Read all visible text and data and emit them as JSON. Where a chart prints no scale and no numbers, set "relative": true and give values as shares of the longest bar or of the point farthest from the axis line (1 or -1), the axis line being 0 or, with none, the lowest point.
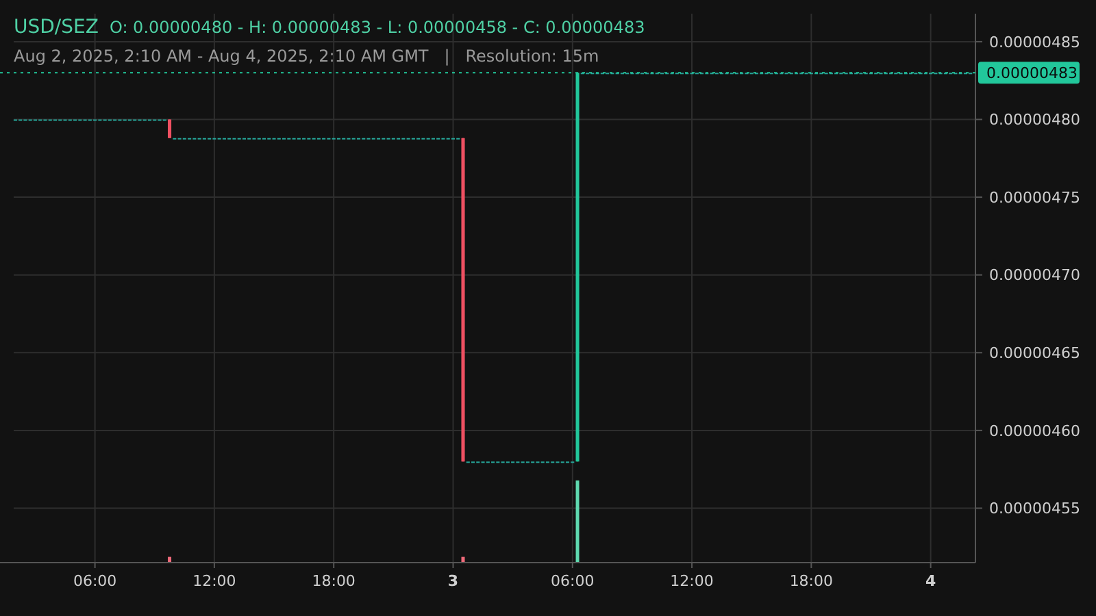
{
  "chart_data": [
    {
      "type": "candlestick",
      "title": "USD/SEZ",
      "subtitle": "Aug 2, 2025, 2:10 AM - Aug 4, 2025, 2:10 AM GMT   |   Resolution: 15m",
      "annotations": [
        "O: 0.00000480 - H: 0.00000483 - L: 0.00000458 - C: 0.00000483"
      ],
      "grid": true,
      "xlim": [
        "2025-08-02T01:55",
        "2025-08-04T02:15"
      ],
      "xticks": [
        {
          "value": "2025-08-02T06:00",
          "label": "06:00"
        },
        {
          "value": "2025-08-02T12:00",
          "label": "12:00"
        },
        {
          "value": "2025-08-02T18:00",
          "label": "18:00"
        },
        {
          "value": "2025-08-03T00:00",
          "label": "3"
        },
        {
          "value": "2025-08-03T06:00",
          "label": "06:00"
        },
        {
          "value": "2025-08-03T12:00",
          "label": "12:00"
        },
        {
          "value": "2025-08-03T18:00",
          "label": "18:00"
        },
        {
          "value": "2025-08-04T00:00",
          "label": "4"
        }
      ],
      "ylim": [
        4.515e-06,
        4.868e-06
      ],
      "yticks": [
        {
          "value": 4.55e-06,
          "label": "0.00000455"
        },
        {
          "value": 4.6e-06,
          "label": "0.00000460"
        },
        {
          "value": 4.65e-06,
          "label": "0.00000465"
        },
        {
          "value": 4.7e-06,
          "label": "0.00000470"
        },
        {
          "value": 4.75e-06,
          "label": "0.00000475"
        },
        {
          "value": 4.8e-06,
          "label": "0.00000480"
        },
        {
          "value": 4.85e-06,
          "label": "0.00000485"
        }
      ],
      "ref_lines": [
        {
          "axis": "y",
          "value": 4.83e-06,
          "label": "0.00000483",
          "color": "#22c79b",
          "line_style": "dotted"
        }
      ],
      "x": [
        "2025-08-02T02:00",
        "2025-08-02T02:15",
        "2025-08-02T02:30",
        "2025-08-02T02:45",
        "2025-08-02T03:00",
        "2025-08-02T03:15",
        "2025-08-02T03:30",
        "2025-08-02T03:45",
        "2025-08-02T04:00",
        "2025-08-02T04:15",
        "2025-08-02T04:30",
        "2025-08-02T04:45",
        "2025-08-02T05:00",
        "2025-08-02T05:15",
        "2025-08-02T05:30",
        "2025-08-02T05:45",
        "2025-08-02T06:00",
        "2025-08-02T06:15",
        "2025-08-02T06:30",
        "2025-08-02T06:45",
        "2025-08-02T07:00",
        "2025-08-02T07:15",
        "2025-08-02T07:30",
        "2025-08-02T07:45",
        "2025-08-02T08:00",
        "2025-08-02T08:15",
        "2025-08-02T08:30",
        "2025-08-02T08:45",
        "2025-08-02T09:00",
        "2025-08-02T09:15",
        "2025-08-02T09:30",
        "2025-08-02T09:45",
        "2025-08-02T10:00",
        "2025-08-02T10:15",
        "2025-08-02T10:30",
        "2025-08-02T10:45",
        "2025-08-02T11:00",
        "2025-08-02T11:15",
        "2025-08-02T11:30",
        "2025-08-02T11:45",
        "2025-08-02T12:00",
        "2025-08-02T12:15",
        "2025-08-02T12:30",
        "2025-08-02T12:45",
        "2025-08-02T13:00",
        "2025-08-02T13:15",
        "2025-08-02T13:30",
        "2025-08-02T13:45",
        "2025-08-02T14:00",
        "2025-08-02T14:15",
        "2025-08-02T14:30",
        "2025-08-02T14:45",
        "2025-08-02T15:00",
        "2025-08-02T15:15",
        "2025-08-02T15:30",
        "2025-08-02T15:45",
        "2025-08-02T16:00",
        "2025-08-02T16:15",
        "2025-08-02T16:30",
        "2025-08-02T16:45",
        "2025-08-02T17:00",
        "2025-08-02T17:15",
        "2025-08-02T17:30",
        "2025-08-02T17:45",
        "2025-08-02T18:00",
        "2025-08-02T18:15",
        "2025-08-02T18:30",
        "2025-08-02T18:45",
        "2025-08-02T19:00",
        "2025-08-02T19:15",
        "2025-08-02T19:30",
        "2025-08-02T19:45",
        "2025-08-02T20:00",
        "2025-08-02T20:15",
        "2025-08-02T20:30",
        "2025-08-02T20:45",
        "2025-08-02T21:00",
        "2025-08-02T21:15",
        "2025-08-02T21:30",
        "2025-08-02T21:45",
        "2025-08-02T22:00",
        "2025-08-02T22:15",
        "2025-08-02T22:30",
        "2025-08-02T22:45",
        "2025-08-02T23:00",
        "2025-08-02T23:15",
        "2025-08-02T23:30",
        "2025-08-02T23:45",
        "2025-08-03T00:00",
        "2025-08-03T00:15",
        "2025-08-03T00:30",
        "2025-08-03T00:45",
        "2025-08-03T01:00",
        "2025-08-03T01:15",
        "2025-08-03T01:30",
        "2025-08-03T01:45",
        "2025-08-03T02:00",
        "2025-08-03T02:15",
        "2025-08-03T02:30",
        "2025-08-03T02:45",
        "2025-08-03T03:00",
        "2025-08-03T03:15",
        "2025-08-03T03:30",
        "2025-08-03T03:45",
        "2025-08-03T04:00",
        "2025-08-03T04:15",
        "2025-08-03T04:30",
        "2025-08-03T04:45",
        "2025-08-03T05:00",
        "2025-08-03T05:15",
        "2025-08-03T05:30",
        "2025-08-03T05:45",
        "2025-08-03T06:00",
        "2025-08-03T06:15",
        "2025-08-03T06:30",
        "2025-08-03T06:45",
        "2025-08-03T07:00",
        "2025-08-03T07:15",
        "2025-08-03T07:30",
        "2025-08-03T07:45",
        "2025-08-03T08:00",
        "2025-08-03T08:15",
        "2025-08-03T08:30",
        "2025-08-03T08:45",
        "2025-08-03T09:00",
        "2025-08-03T09:15",
        "2025-08-03T09:30",
        "2025-08-03T09:45",
        "2025-08-03T10:00",
        "2025-08-03T10:15",
        "2025-08-03T10:30",
        "2025-08-03T10:45",
        "2025-08-03T11:00",
        "2025-08-03T11:15",
        "2025-08-03T11:30",
        "2025-08-03T11:45",
        "2025-08-03T12:00",
        "2025-08-03T12:15",
        "2025-08-03T12:30",
        "2025-08-03T12:45",
        "2025-08-03T13:00",
        "2025-08-03T13:15",
        "2025-08-03T13:30",
        "2025-08-03T13:45",
        "2025-08-03T14:00",
        "2025-08-03T14:15",
        "2025-08-03T14:30",
        "2025-08-03T14:45",
        "2025-08-03T15:00",
        "2025-08-03T15:15",
        "2025-08-03T15:30",
        "2025-08-03T15:45",
        "2025-08-03T16:00",
        "2025-08-03T16:15",
        "2025-08-03T16:30",
        "2025-08-03T16:45",
        "2025-08-03T17:00",
        "2025-08-03T17:15",
        "2025-08-03T17:30",
        "2025-08-03T17:45",
        "2025-08-03T18:00",
        "2025-08-03T18:15",
        "2025-08-03T18:30",
        "2025-08-03T18:45",
        "2025-08-03T19:00",
        "2025-08-03T19:15",
        "2025-08-03T19:30",
        "2025-08-03T19:45",
        "2025-08-03T20:00",
        "2025-08-03T20:15",
        "2025-08-03T20:30",
        "2025-08-03T20:45",
        "2025-08-03T21:00",
        "2025-08-03T21:15",
        "2025-08-03T21:30",
        "2025-08-03T21:45",
        "2025-08-03T22:00",
        "2025-08-03T22:15",
        "2025-08-03T22:30",
        "2025-08-03T22:45",
        "2025-08-03T23:00",
        "2025-08-03T23:15",
        "2025-08-03T23:30",
        "2025-08-03T23:45",
        "2025-08-04T00:00",
        "2025-08-04T00:15",
        "2025-08-04T00:30",
        "2025-08-04T00:45",
        "2025-08-04T01:00",
        "2025-08-04T01:15",
        "2025-08-04T01:30",
        "2025-08-04T01:45",
        "2025-08-04T02:00"
      ],
      "ohlc": [
        [
          4.8e-06,
          4.8e-06,
          4.8e-06,
          4.8e-06
        ],
        [
          4.8e-06,
          4.8e-06,
          4.8e-06,
          4.8e-06
        ],
        [
          4.8e-06,
          4.8e-06,
          4.8e-06,
          4.8e-06
        ],
        [
          4.8e-06,
          4.8e-06,
          4.8e-06,
          4.8e-06
        ],
        [
          4.8e-06,
          4.8e-06,
          4.8e-06,
          4.8e-06
        ],
        [
          4.8e-06,
          4.8e-06,
          4.8e-06,
          4.8e-06
        ],
        [
          4.8e-06,
          4.8e-06,
          4.8e-06,
          4.8e-06
        ],
        [
          4.8e-06,
          4.8e-06,
          4.8e-06,
          4.8e-06
        ],
        [
          4.8e-06,
          4.8e-06,
          4.8e-06,
          4.8e-06
        ],
        [
          4.8e-06,
          4.8e-06,
          4.8e-06,
          4.8e-06
        ],
        [
          4.8e-06,
          4.8e-06,
          4.8e-06,
          4.8e-06
        ],
        [
          4.8e-06,
          4.8e-06,
          4.8e-06,
          4.8e-06
        ],
        [
          4.8e-06,
          4.8e-06,
          4.8e-06,
          4.8e-06
        ],
        [
          4.8e-06,
          4.8e-06,
          4.8e-06,
          4.8e-06
        ],
        [
          4.8e-06,
          4.8e-06,
          4.8e-06,
          4.8e-06
        ],
        [
          4.8e-06,
          4.8e-06,
          4.8e-06,
          4.8e-06
        ],
        [
          4.8e-06,
          4.8e-06,
          4.8e-06,
          4.8e-06
        ],
        [
          4.8e-06,
          4.8e-06,
          4.8e-06,
          4.8e-06
        ],
        [
          4.8e-06,
          4.8e-06,
          4.8e-06,
          4.8e-06
        ],
        [
          4.8e-06,
          4.8e-06,
          4.8e-06,
          4.8e-06
        ],
        [
          4.8e-06,
          4.8e-06,
          4.8e-06,
          4.8e-06
        ],
        [
          4.8e-06,
          4.8e-06,
          4.8e-06,
          4.8e-06
        ],
        [
          4.8e-06,
          4.8e-06,
          4.8e-06,
          4.8e-06
        ],
        [
          4.8e-06,
          4.8e-06,
          4.8e-06,
          4.8e-06
        ],
        [
          4.8e-06,
          4.8e-06,
          4.8e-06,
          4.8e-06
        ],
        [
          4.8e-06,
          4.8e-06,
          4.8e-06,
          4.8e-06
        ],
        [
          4.8e-06,
          4.8e-06,
          4.8e-06,
          4.8e-06
        ],
        [
          4.8e-06,
          4.8e-06,
          4.8e-06,
          4.8e-06
        ],
        [
          4.8e-06,
          4.8e-06,
          4.8e-06,
          4.8e-06
        ],
        [
          4.8e-06,
          4.8e-06,
          4.8e-06,
          4.8e-06
        ],
        [
          4.8e-06,
          4.8e-06,
          4.8e-06,
          4.8e-06
        ],
        [
          4.8e-06,
          4.8e-06,
          4.788e-06,
          4.788e-06
        ],
        [
          4.788e-06,
          4.788e-06,
          4.788e-06,
          4.788e-06
        ],
        [
          4.788e-06,
          4.788e-06,
          4.788e-06,
          4.788e-06
        ],
        [
          4.788e-06,
          4.788e-06,
          4.788e-06,
          4.788e-06
        ],
        [
          4.788e-06,
          4.788e-06,
          4.788e-06,
          4.788e-06
        ],
        [
          4.788e-06,
          4.788e-06,
          4.788e-06,
          4.788e-06
        ],
        [
          4.788e-06,
          4.788e-06,
          4.788e-06,
          4.788e-06
        ],
        [
          4.788e-06,
          4.788e-06,
          4.788e-06,
          4.788e-06
        ],
        [
          4.788e-06,
          4.788e-06,
          4.788e-06,
          4.788e-06
        ],
        [
          4.788e-06,
          4.788e-06,
          4.788e-06,
          4.788e-06
        ],
        [
          4.788e-06,
          4.788e-06,
          4.788e-06,
          4.788e-06
        ],
        [
          4.788e-06,
          4.788e-06,
          4.788e-06,
          4.788e-06
        ],
        [
          4.788e-06,
          4.788e-06,
          4.788e-06,
          4.788e-06
        ],
        [
          4.788e-06,
          4.788e-06,
          4.788e-06,
          4.788e-06
        ],
        [
          4.788e-06,
          4.788e-06,
          4.788e-06,
          4.788e-06
        ],
        [
          4.788e-06,
          4.788e-06,
          4.788e-06,
          4.788e-06
        ],
        [
          4.788e-06,
          4.788e-06,
          4.788e-06,
          4.788e-06
        ],
        [
          4.788e-06,
          4.788e-06,
          4.788e-06,
          4.788e-06
        ],
        [
          4.788e-06,
          4.788e-06,
          4.788e-06,
          4.788e-06
        ],
        [
          4.788e-06,
          4.788e-06,
          4.788e-06,
          4.788e-06
        ],
        [
          4.788e-06,
          4.788e-06,
          4.788e-06,
          4.788e-06
        ],
        [
          4.788e-06,
          4.788e-06,
          4.788e-06,
          4.788e-06
        ],
        [
          4.788e-06,
          4.788e-06,
          4.788e-06,
          4.788e-06
        ],
        [
          4.788e-06,
          4.788e-06,
          4.788e-06,
          4.788e-06
        ],
        [
          4.788e-06,
          4.788e-06,
          4.788e-06,
          4.788e-06
        ],
        [
          4.788e-06,
          4.788e-06,
          4.788e-06,
          4.788e-06
        ],
        [
          4.788e-06,
          4.788e-06,
          4.788e-06,
          4.788e-06
        ],
        [
          4.788e-06,
          4.788e-06,
          4.788e-06,
          4.788e-06
        ],
        [
          4.788e-06,
          4.788e-06,
          4.788e-06,
          4.788e-06
        ],
        [
          4.788e-06,
          4.788e-06,
          4.788e-06,
          4.788e-06
        ],
        [
          4.788e-06,
          4.788e-06,
          4.788e-06,
          4.788e-06
        ],
        [
          4.788e-06,
          4.788e-06,
          4.788e-06,
          4.788e-06
        ],
        [
          4.788e-06,
          4.788e-06,
          4.788e-06,
          4.788e-06
        ],
        [
          4.788e-06,
          4.788e-06,
          4.788e-06,
          4.788e-06
        ],
        [
          4.788e-06,
          4.788e-06,
          4.788e-06,
          4.788e-06
        ],
        [
          4.788e-06,
          4.788e-06,
          4.788e-06,
          4.788e-06
        ],
        [
          4.788e-06,
          4.788e-06,
          4.788e-06,
          4.788e-06
        ],
        [
          4.788e-06,
          4.788e-06,
          4.788e-06,
          4.788e-06
        ],
        [
          4.788e-06,
          4.788e-06,
          4.788e-06,
          4.788e-06
        ],
        [
          4.788e-06,
          4.788e-06,
          4.788e-06,
          4.788e-06
        ],
        [
          4.788e-06,
          4.788e-06,
          4.788e-06,
          4.788e-06
        ],
        [
          4.788e-06,
          4.788e-06,
          4.788e-06,
          4.788e-06
        ],
        [
          4.788e-06,
          4.788e-06,
          4.788e-06,
          4.788e-06
        ],
        [
          4.788e-06,
          4.788e-06,
          4.788e-06,
          4.788e-06
        ],
        [
          4.788e-06,
          4.788e-06,
          4.788e-06,
          4.788e-06
        ],
        [
          4.788e-06,
          4.788e-06,
          4.788e-06,
          4.788e-06
        ],
        [
          4.788e-06,
          4.788e-06,
          4.788e-06,
          4.788e-06
        ],
        [
          4.788e-06,
          4.788e-06,
          4.788e-06,
          4.788e-06
        ],
        [
          4.788e-06,
          4.788e-06,
          4.788e-06,
          4.788e-06
        ],
        [
          4.788e-06,
          4.788e-06,
          4.788e-06,
          4.788e-06
        ],
        [
          4.788e-06,
          4.788e-06,
          4.788e-06,
          4.788e-06
        ],
        [
          4.788e-06,
          4.788e-06,
          4.788e-06,
          4.788e-06
        ],
        [
          4.788e-06,
          4.788e-06,
          4.788e-06,
          4.788e-06
        ],
        [
          4.788e-06,
          4.788e-06,
          4.788e-06,
          4.788e-06
        ],
        [
          4.788e-06,
          4.788e-06,
          4.788e-06,
          4.788e-06
        ],
        [
          4.788e-06,
          4.788e-06,
          4.788e-06,
          4.788e-06
        ],
        [
          4.788e-06,
          4.788e-06,
          4.788e-06,
          4.788e-06
        ],
        [
          4.788e-06,
          4.788e-06,
          4.788e-06,
          4.788e-06
        ],
        [
          4.788e-06,
          4.788e-06,
          4.788e-06,
          4.788e-06
        ],
        [
          4.788e-06,
          4.788e-06,
          4.58e-06,
          4.58e-06
        ],
        [
          4.58e-06,
          4.58e-06,
          4.58e-06,
          4.58e-06
        ],
        [
          4.58e-06,
          4.58e-06,
          4.58e-06,
          4.58e-06
        ],
        [
          4.58e-06,
          4.58e-06,
          4.58e-06,
          4.58e-06
        ],
        [
          4.58e-06,
          4.58e-06,
          4.58e-06,
          4.58e-06
        ],
        [
          4.58e-06,
          4.58e-06,
          4.58e-06,
          4.58e-06
        ],
        [
          4.58e-06,
          4.58e-06,
          4.58e-06,
          4.58e-06
        ],
        [
          4.58e-06,
          4.58e-06,
          4.58e-06,
          4.58e-06
        ],
        [
          4.58e-06,
          4.58e-06,
          4.58e-06,
          4.58e-06
        ],
        [
          4.58e-06,
          4.58e-06,
          4.58e-06,
          4.58e-06
        ],
        [
          4.58e-06,
          4.58e-06,
          4.58e-06,
          4.58e-06
        ],
        [
          4.58e-06,
          4.58e-06,
          4.58e-06,
          4.58e-06
        ],
        [
          4.58e-06,
          4.58e-06,
          4.58e-06,
          4.58e-06
        ],
        [
          4.58e-06,
          4.58e-06,
          4.58e-06,
          4.58e-06
        ],
        [
          4.58e-06,
          4.58e-06,
          4.58e-06,
          4.58e-06
        ],
        [
          4.58e-06,
          4.58e-06,
          4.58e-06,
          4.58e-06
        ],
        [
          4.58e-06,
          4.58e-06,
          4.58e-06,
          4.58e-06
        ],
        [
          4.58e-06,
          4.58e-06,
          4.58e-06,
          4.58e-06
        ],
        [
          4.58e-06,
          4.58e-06,
          4.58e-06,
          4.58e-06
        ],
        [
          4.58e-06,
          4.58e-06,
          4.58e-06,
          4.58e-06
        ],
        [
          4.58e-06,
          4.58e-06,
          4.58e-06,
          4.58e-06
        ],
        [
          4.58e-06,
          4.58e-06,
          4.58e-06,
          4.58e-06
        ],
        [
          4.58e-06,
          4.58e-06,
          4.58e-06,
          4.58e-06
        ],
        [
          4.58e-06,
          4.83e-06,
          4.58e-06,
          4.83e-06
        ],
        [
          4.83e-06,
          4.83e-06,
          4.83e-06,
          4.83e-06
        ],
        [
          4.83e-06,
          4.83e-06,
          4.83e-06,
          4.83e-06
        ],
        [
          4.83e-06,
          4.83e-06,
          4.83e-06,
          4.83e-06
        ],
        [
          4.83e-06,
          4.83e-06,
          4.83e-06,
          4.83e-06
        ],
        [
          4.83e-06,
          4.83e-06,
          4.83e-06,
          4.83e-06
        ],
        [
          4.83e-06,
          4.83e-06,
          4.83e-06,
          4.83e-06
        ],
        [
          4.83e-06,
          4.83e-06,
          4.83e-06,
          4.83e-06
        ],
        [
          4.83e-06,
          4.83e-06,
          4.83e-06,
          4.83e-06
        ],
        [
          4.83e-06,
          4.83e-06,
          4.83e-06,
          4.83e-06
        ],
        [
          4.83e-06,
          4.83e-06,
          4.83e-06,
          4.83e-06
        ],
        [
          4.83e-06,
          4.83e-06,
          4.83e-06,
          4.83e-06
        ],
        [
          4.83e-06,
          4.83e-06,
          4.83e-06,
          4.83e-06
        ],
        [
          4.83e-06,
          4.83e-06,
          4.83e-06,
          4.83e-06
        ],
        [
          4.83e-06,
          4.83e-06,
          4.83e-06,
          4.83e-06
        ],
        [
          4.83e-06,
          4.83e-06,
          4.83e-06,
          4.83e-06
        ],
        [
          4.83e-06,
          4.83e-06,
          4.83e-06,
          4.83e-06
        ],
        [
          4.83e-06,
          4.83e-06,
          4.83e-06,
          4.83e-06
        ],
        [
          4.83e-06,
          4.83e-06,
          4.83e-06,
          4.83e-06
        ],
        [
          4.83e-06,
          4.83e-06,
          4.83e-06,
          4.83e-06
        ],
        [
          4.83e-06,
          4.83e-06,
          4.83e-06,
          4.83e-06
        ],
        [
          4.83e-06,
          4.83e-06,
          4.83e-06,
          4.83e-06
        ],
        [
          4.83e-06,
          4.83e-06,
          4.83e-06,
          4.83e-06
        ],
        [
          4.83e-06,
          4.83e-06,
          4.83e-06,
          4.83e-06
        ],
        [
          4.83e-06,
          4.83e-06,
          4.83e-06,
          4.83e-06
        ],
        [
          4.83e-06,
          4.83e-06,
          4.83e-06,
          4.83e-06
        ],
        [
          4.83e-06,
          4.83e-06,
          4.83e-06,
          4.83e-06
        ],
        [
          4.83e-06,
          4.83e-06,
          4.83e-06,
          4.83e-06
        ],
        [
          4.83e-06,
          4.83e-06,
          4.83e-06,
          4.83e-06
        ],
        [
          4.83e-06,
          4.83e-06,
          4.83e-06,
          4.83e-06
        ],
        [
          4.83e-06,
          4.83e-06,
          4.83e-06,
          4.83e-06
        ],
        [
          4.83e-06,
          4.83e-06,
          4.83e-06,
          4.83e-06
        ],
        [
          4.83e-06,
          4.83e-06,
          4.83e-06,
          4.83e-06
        ],
        [
          4.83e-06,
          4.83e-06,
          4.83e-06,
          4.83e-06
        ],
        [
          4.83e-06,
          4.83e-06,
          4.83e-06,
          4.83e-06
        ],
        [
          4.83e-06,
          4.83e-06,
          4.83e-06,
          4.83e-06
        ],
        [
          4.83e-06,
          4.83e-06,
          4.83e-06,
          4.83e-06
        ],
        [
          4.83e-06,
          4.83e-06,
          4.83e-06,
          4.83e-06
        ],
        [
          4.83e-06,
          4.83e-06,
          4.83e-06,
          4.83e-06
        ],
        [
          4.83e-06,
          4.83e-06,
          4.83e-06,
          4.83e-06
        ],
        [
          4.83e-06,
          4.83e-06,
          4.83e-06,
          4.83e-06
        ],
        [
          4.83e-06,
          4.83e-06,
          4.83e-06,
          4.83e-06
        ],
        [
          4.83e-06,
          4.83e-06,
          4.83e-06,
          4.83e-06
        ],
        [
          4.83e-06,
          4.83e-06,
          4.83e-06,
          4.83e-06
        ],
        [
          4.83e-06,
          4.83e-06,
          4.83e-06,
          4.83e-06
        ],
        [
          4.83e-06,
          4.83e-06,
          4.83e-06,
          4.83e-06
        ],
        [
          4.83e-06,
          4.83e-06,
          4.83e-06,
          4.83e-06
        ],
        [
          4.83e-06,
          4.83e-06,
          4.83e-06,
          4.83e-06
        ],
        [
          4.83e-06,
          4.83e-06,
          4.83e-06,
          4.83e-06
        ],
        [
          4.83e-06,
          4.83e-06,
          4.83e-06,
          4.83e-06
        ],
        [
          4.83e-06,
          4.83e-06,
          4.83e-06,
          4.83e-06
        ],
        [
          4.83e-06,
          4.83e-06,
          4.83e-06,
          4.83e-06
        ],
        [
          4.83e-06,
          4.83e-06,
          4.83e-06,
          4.83e-06
        ],
        [
          4.83e-06,
          4.83e-06,
          4.83e-06,
          4.83e-06
        ],
        [
          4.83e-06,
          4.83e-06,
          4.83e-06,
          4.83e-06
        ],
        [
          4.83e-06,
          4.83e-06,
          4.83e-06,
          4.83e-06
        ],
        [
          4.83e-06,
          4.83e-06,
          4.83e-06,
          4.83e-06
        ],
        [
          4.83e-06,
          4.83e-06,
          4.83e-06,
          4.83e-06
        ],
        [
          4.83e-06,
          4.83e-06,
          4.83e-06,
          4.83e-06
        ],
        [
          4.83e-06,
          4.83e-06,
          4.83e-06,
          4.83e-06
        ],
        [
          4.83e-06,
          4.83e-06,
          4.83e-06,
          4.83e-06
        ],
        [
          4.83e-06,
          4.83e-06,
          4.83e-06,
          4.83e-06
        ],
        [
          4.83e-06,
          4.83e-06,
          4.83e-06,
          4.83e-06
        ],
        [
          4.83e-06,
          4.83e-06,
          4.83e-06,
          4.83e-06
        ],
        [
          4.83e-06,
          4.83e-06,
          4.83e-06,
          4.83e-06
        ],
        [
          4.83e-06,
          4.83e-06,
          4.83e-06,
          4.83e-06
        ],
        [
          4.83e-06,
          4.83e-06,
          4.83e-06,
          4.83e-06
        ],
        [
          4.83e-06,
          4.83e-06,
          4.83e-06,
          4.83e-06
        ],
        [
          4.83e-06,
          4.83e-06,
          4.83e-06,
          4.83e-06
        ],
        [
          4.83e-06,
          4.83e-06,
          4.83e-06,
          4.83e-06
        ],
        [
          4.83e-06,
          4.83e-06,
          4.83e-06,
          4.83e-06
        ],
        [
          4.83e-06,
          4.83e-06,
          4.83e-06,
          4.83e-06
        ],
        [
          4.83e-06,
          4.83e-06,
          4.83e-06,
          4.83e-06
        ],
        [
          4.83e-06,
          4.83e-06,
          4.83e-06,
          4.83e-06
        ],
        [
          4.83e-06,
          4.83e-06,
          4.83e-06,
          4.83e-06
        ],
        [
          4.83e-06,
          4.83e-06,
          4.83e-06,
          4.83e-06
        ],
        [
          4.83e-06,
          4.83e-06,
          4.83e-06,
          4.83e-06
        ],
        [
          4.83e-06,
          4.83e-06,
          4.83e-06,
          4.83e-06
        ],
        [
          4.83e-06,
          4.83e-06,
          4.83e-06,
          4.83e-06
        ],
        [
          4.83e-06,
          4.83e-06,
          4.83e-06,
          4.83e-06
        ]
      ],
      "colors": [
        "#26a69a",
        "#26a69a",
        "#26a69a",
        "#26a69a",
        "#26a69a",
        "#26a69a",
        "#26a69a",
        "#26a69a",
        "#26a69a",
        "#26a69a",
        "#26a69a",
        "#26a69a",
        "#26a69a",
        "#26a69a",
        "#26a69a",
        "#26a69a",
        "#26a69a",
        "#26a69a",
        "#26a69a",
        "#26a69a",
        "#26a69a",
        "#26a69a",
        "#26a69a",
        "#26a69a",
        "#26a69a",
        "#26a69a",
        "#26a69a",
        "#26a69a",
        "#26a69a",
        "#26a69a",
        "#26a69a",
        "#ef5062",
        "#26a69a",
        "#26a69a",
        "#26a69a",
        "#26a69a",
        "#26a69a",
        "#26a69a",
        "#26a69a",
        "#26a69a",
        "#26a69a",
        "#26a69a",
        "#26a69a",
        "#26a69a",
        "#26a69a",
        "#26a69a",
        "#26a69a",
        "#26a69a",
        "#26a69a",
        "#26a69a",
        "#26a69a",
        "#26a69a",
        "#26a69a",
        "#26a69a",
        "#26a69a",
        "#26a69a",
        "#26a69a",
        "#26a69a",
        "#26a69a",
        "#26a69a",
        "#26a69a",
        "#26a69a",
        "#26a69a",
        "#26a69a",
        "#26a69a",
        "#26a69a",
        "#26a69a",
        "#26a69a",
        "#26a69a",
        "#26a69a",
        "#26a69a",
        "#26a69a",
        "#26a69a",
        "#26a69a",
        "#26a69a",
        "#26a69a",
        "#26a69a",
        "#26a69a",
        "#26a69a",
        "#26a69a",
        "#26a69a",
        "#26a69a",
        "#26a69a",
        "#26a69a",
        "#26a69a",
        "#26a69a",
        "#26a69a",
        "#26a69a",
        "#26a69a",
        "#26a69a",
        "#ef5062",
        "#26a69a",
        "#26a69a",
        "#26a69a",
        "#26a69a",
        "#26a69a",
        "#26a69a",
        "#26a69a",
        "#26a69a",
        "#26a69a",
        "#26a69a",
        "#26a69a",
        "#26a69a",
        "#26a69a",
        "#26a69a",
        "#26a69a",
        "#26a69a",
        "#26a69a",
        "#26a69a",
        "#26a69a",
        "#26a69a",
        "#26a69a",
        "#26a69a",
        "#22c79b",
        "#26a69a",
        "#26a69a",
        "#26a69a",
        "#26a69a",
        "#26a69a",
        "#26a69a",
        "#26a69a",
        "#26a69a",
        "#26a69a",
        "#26a69a",
        "#26a69a",
        "#26a69a",
        "#26a69a",
        "#26a69a",
        "#26a69a",
        "#26a69a",
        "#26a69a",
        "#26a69a",
        "#26a69a",
        "#26a69a",
        "#26a69a",
        "#26a69a",
        "#26a69a",
        "#26a69a",
        "#26a69a",
        "#26a69a",
        "#26a69a",
        "#26a69a",
        "#26a69a",
        "#26a69a",
        "#26a69a",
        "#26a69a",
        "#26a69a",
        "#26a69a",
        "#26a69a",
        "#26a69a",
        "#26a69a",
        "#26a69a",
        "#26a69a",
        "#26a69a",
        "#26a69a",
        "#26a69a",
        "#26a69a",
        "#26a69a",
        "#26a69a",
        "#26a69a",
        "#26a69a",
        "#26a69a",
        "#26a69a",
        "#26a69a",
        "#26a69a",
        "#26a69a",
        "#26a69a",
        "#26a69a",
        "#26a69a",
        "#26a69a",
        "#26a69a",
        "#26a69a",
        "#26a69a",
        "#26a69a",
        "#26a69a",
        "#26a69a",
        "#26a69a",
        "#26a69a",
        "#26a69a",
        "#26a69a",
        "#26a69a",
        "#26a69a",
        "#26a69a",
        "#26a69a",
        "#26a69a",
        "#26a69a",
        "#26a69a",
        "#26a69a",
        "#26a69a",
        "#26a69a",
        "#26a69a",
        "#26a69a",
        "#26a69a"
      ]
    },
    {
      "type": "bar",
      "relative": true,
      "xlim": [
        "2025-08-02T01:55",
        "2025-08-04T02:15"
      ],
      "x": [
        "2025-08-02T09:45",
        "2025-08-03T00:30",
        "2025-08-03T06:15"
      ],
      "values": [
        0.07,
        0.07,
        1
      ],
      "colors": [
        "#f06a7a",
        "#f06a7a",
        "#5fd9b0"
      ]
    }
  ]
}
